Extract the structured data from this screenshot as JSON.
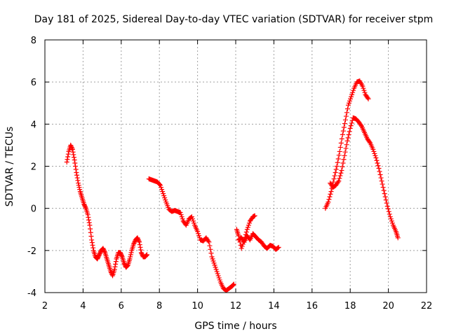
{
  "chart_data": {
    "type": "scatter",
    "title": "Day 181 of 2025, Sidereal Day-to-day VTEC variation (SDTVAR) for receiver stpm",
    "xlabel": "GPS time / hours",
    "ylabel": "SDTVAR / TECUs",
    "xlim": [
      2,
      22
    ],
    "ylim": [
      -4,
      8
    ],
    "xticks": [
      2,
      4,
      6,
      8,
      10,
      12,
      14,
      16,
      18,
      20,
      22
    ],
    "yticks": [
      -4,
      -2,
      0,
      2,
      4,
      6,
      8
    ],
    "grid": true,
    "marker": "+",
    "color": "#ff0000",
    "series": [
      {
        "name": "segment-1",
        "x": [
          3.15,
          3.25,
          3.35,
          3.45,
          3.55,
          3.65,
          3.75,
          3.85,
          3.95,
          4.05,
          4.15,
          4.25,
          4.35,
          4.45,
          4.55,
          4.65,
          4.75,
          4.85,
          4.95,
          5.05,
          5.15,
          5.25,
          5.35,
          5.45,
          5.55,
          5.65,
          5.75,
          5.85,
          5.95,
          6.05,
          6.15,
          6.25,
          6.35,
          6.45,
          6.55,
          6.65,
          6.75,
          6.85,
          6.95,
          7.05,
          7.15,
          7.25,
          7.35
        ],
        "y": [
          2.2,
          2.7,
          3.0,
          2.8,
          2.3,
          1.7,
          1.2,
          0.8,
          0.5,
          0.2,
          0.0,
          -0.3,
          -0.8,
          -1.5,
          -2.0,
          -2.3,
          -2.4,
          -2.2,
          -2.0,
          -1.9,
          -2.1,
          -2.4,
          -2.7,
          -3.0,
          -3.2,
          -2.9,
          -2.4,
          -2.1,
          -2.1,
          -2.3,
          -2.6,
          -2.8,
          -2.7,
          -2.4,
          -2.0,
          -1.7,
          -1.5,
          -1.4,
          -1.6,
          -2.1,
          -2.3,
          -2.3,
          -2.2
        ]
      },
      {
        "name": "segment-2",
        "x": [
          7.45,
          7.6,
          7.75,
          7.9,
          8.05,
          8.2,
          8.35,
          8.5,
          8.65,
          8.8,
          8.95,
          9.1,
          9.25,
          9.4,
          9.55,
          9.7,
          9.85,
          10.0,
          10.15,
          10.3,
          10.45,
          10.6,
          10.75,
          10.9,
          11.05,
          11.2,
          11.35,
          11.5,
          11.65,
          11.8,
          11.9
        ],
        "y": [
          1.4,
          1.35,
          1.3,
          1.25,
          1.1,
          0.7,
          0.3,
          -0.05,
          -0.15,
          -0.1,
          -0.15,
          -0.2,
          -0.6,
          -0.8,
          -0.5,
          -0.4,
          -0.8,
          -1.1,
          -1.5,
          -1.55,
          -1.4,
          -1.6,
          -2.3,
          -2.7,
          -3.1,
          -3.5,
          -3.8,
          -3.9,
          -3.8,
          -3.7,
          -3.6
        ]
      },
      {
        "name": "segment-3",
        "x": [
          12.15,
          12.3,
          12.45,
          12.6,
          12.75,
          12.9,
          13.05,
          13.2,
          13.35,
          13.5,
          13.65,
          13.8,
          13.95,
          14.1,
          14.25
        ],
        "y": [
          -1.5,
          -1.4,
          -1.6,
          -1.3,
          -1.5,
          -1.2,
          -1.35,
          -1.5,
          -1.6,
          -1.8,
          -1.9,
          -1.75,
          -1.8,
          -1.95,
          -1.85
        ]
      },
      {
        "name": "segment-4",
        "x": [
          12.05,
          12.15,
          12.3,
          12.45,
          12.6,
          12.75,
          12.9,
          13.0
        ],
        "y": [
          -1.0,
          -1.3,
          -1.9,
          -1.5,
          -1.0,
          -0.6,
          -0.4,
          -0.35
        ]
      },
      {
        "name": "segment-5",
        "x": [
          16.7,
          16.85,
          17.0,
          17.15,
          17.3,
          17.45,
          17.6,
          17.75,
          17.9,
          18.05,
          18.2,
          18.35,
          18.5,
          18.65,
          18.8,
          18.95
        ],
        "y": [
          0.0,
          0.3,
          0.8,
          1.4,
          2.0,
          2.7,
          3.5,
          4.2,
          4.9,
          5.3,
          5.7,
          6.0,
          6.05,
          5.8,
          5.4,
          5.2
        ]
      },
      {
        "name": "segment-6",
        "x": [
          16.95,
          17.1,
          17.25,
          17.4,
          17.55,
          17.7,
          17.85,
          18.0,
          18.15,
          18.3,
          18.45,
          18.6,
          18.75,
          18.9,
          19.05,
          19.2,
          19.35,
          19.5,
          19.65,
          19.8,
          19.95,
          20.1,
          20.25,
          20.4,
          20.5
        ],
        "y": [
          1.2,
          1.0,
          1.1,
          1.3,
          1.8,
          2.5,
          3.2,
          3.8,
          4.3,
          4.25,
          4.1,
          3.9,
          3.6,
          3.3,
          3.1,
          2.8,
          2.4,
          1.9,
          1.3,
          0.7,
          0.1,
          -0.4,
          -0.8,
          -1.1,
          -1.4
        ]
      }
    ]
  }
}
